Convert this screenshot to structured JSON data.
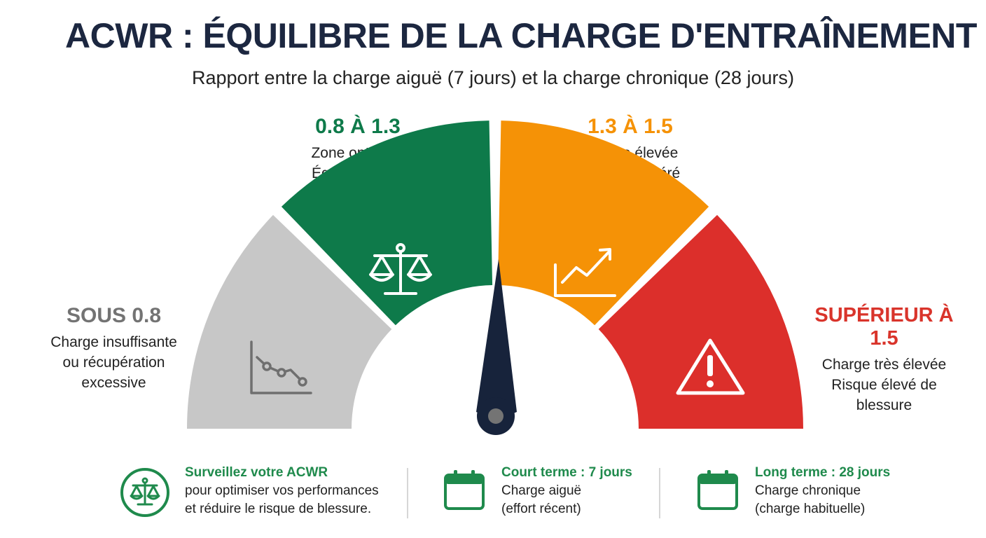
{
  "header": {
    "title": "ACWR : ÉQUILIBRE DE LA CHARGE D'ENTRAÎNEMENT",
    "subtitle": "Rapport entre la charge aiguë (7 jours) et la charge chronique (28 jours)"
  },
  "zones": {
    "under": {
      "range": "SOUS 0.8",
      "lines": [
        "Charge insuffisante",
        "ou récupération",
        "excessive"
      ],
      "color": "#c7c7c7",
      "text_color": "#737373",
      "icon": "declining-chart-icon"
    },
    "optimal": {
      "range": "0.8 À 1.3",
      "lines": [
        "Zone optimale",
        "Équilibre idéal"
      ],
      "color": "#0e7a4a",
      "text_color": "#0e7a4a",
      "icon": "balance-scale-icon"
    },
    "high": {
      "range": "1.3 À 1.5",
      "lines": [
        "Charge élevée",
        "Risque modéré"
      ],
      "color": "#f59206",
      "text_color": "#f59206",
      "icon": "rising-chart-icon"
    },
    "very_high": {
      "range": "SUPÉRIEUR À 1.5",
      "lines": [
        "Charge très élevée",
        "Risque élevé de",
        "blessure"
      ],
      "color": "#dc2f2b",
      "text_color": "#d9342b",
      "icon": "warning-triangle-icon"
    }
  },
  "needle": {
    "color": "#17233b",
    "hub_color": "#747474"
  },
  "footer": {
    "monitor": {
      "title": "Surveillez votre ACWR",
      "lines": [
        "pour optimiser vos performances",
        "et réduire le risque de blessure."
      ],
      "icon": "balance-scale-icon"
    },
    "short_term": {
      "title": "Court terme : 7 jours",
      "lines": [
        "Charge aiguë",
        "(effort récent)"
      ],
      "icon": "calendar-icon"
    },
    "long_term": {
      "title": "Long terme : 28 jours",
      "lines": [
        "Charge chronique",
        "(charge habituelle)"
      ],
      "icon": "calendar-icon"
    },
    "accent": "#1f8a4c"
  }
}
